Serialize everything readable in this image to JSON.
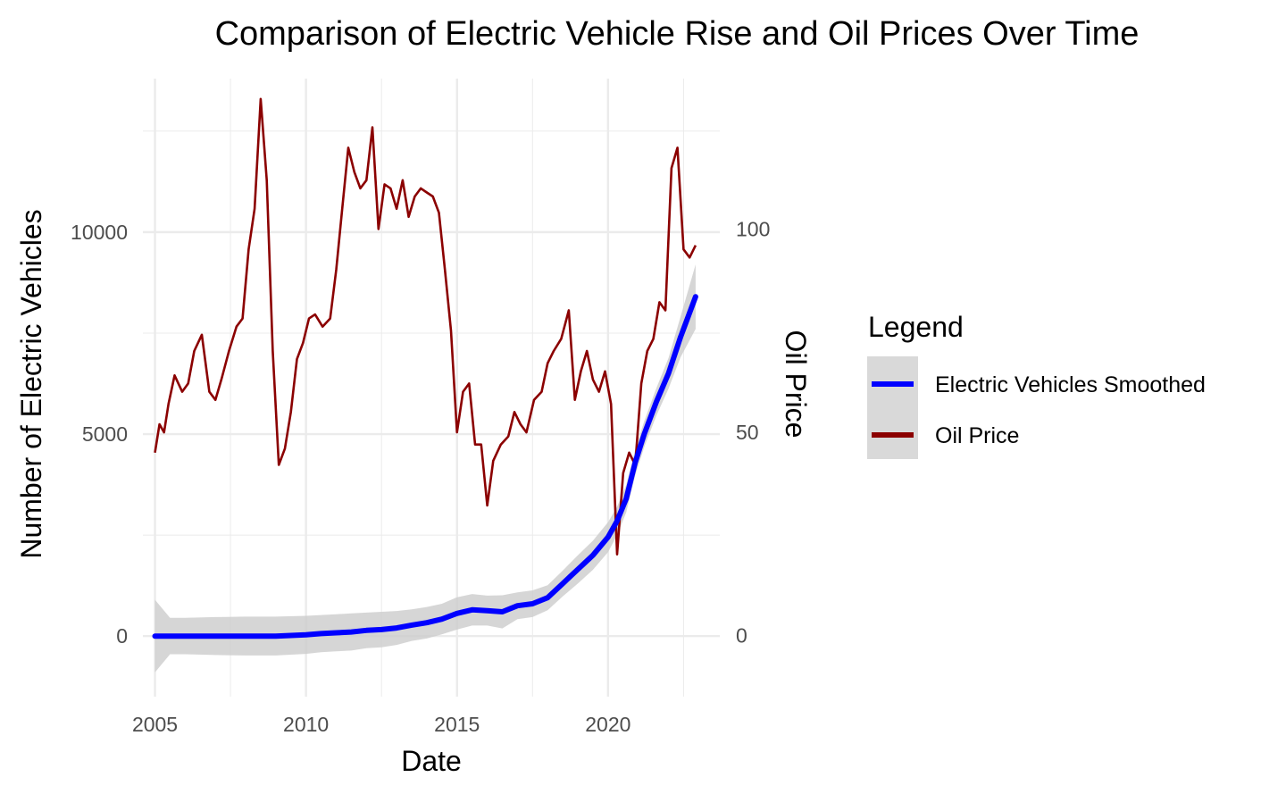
{
  "chart_data": {
    "type": "line",
    "title": "Comparison of Electric Vehicle Rise and Oil Prices Over Time",
    "xlabel": "Date",
    "ylabel": "Number of Electric Vehicles",
    "y2label": "Oil Price",
    "xlim": [
      2004.6,
      2023.7
    ],
    "ylim": [
      -1500,
      13800
    ],
    "y2lim": [
      -15,
      137
    ],
    "x_ticks": [
      "2005",
      "2010",
      "2015",
      "2020"
    ],
    "y_ticks": [
      "0",
      "5000",
      "10000"
    ],
    "y2_ticks": [
      "0",
      "50",
      "100"
    ],
    "grid": true,
    "legend": {
      "title": "Legend",
      "position": "right",
      "entries": [
        "Electric Vehicles Smoothed",
        "Oil Price"
      ]
    },
    "colors": {
      "ev": "#0000ff",
      "oil": "#8b0000",
      "band": "#cccccc",
      "grid": "#ebebeb"
    },
    "series": [
      {
        "name": "Electric Vehicles Smoothed",
        "axis": "left",
        "x": [
          2005.0,
          2005.5,
          2006,
          2007,
          2008,
          2009,
          2010,
          2010.5,
          2011,
          2011.5,
          2012,
          2012.5,
          2013,
          2013.5,
          2014,
          2014.5,
          2015,
          2015.5,
          2016,
          2016.5,
          2017,
          2017.5,
          2018,
          2018.5,
          2019,
          2019.5,
          2020,
          2020.3,
          2020.6,
          2020.9,
          2021.2,
          2021.6,
          2022,
          2022.4,
          2022.9
        ],
        "y": [
          0,
          0,
          0,
          0,
          0,
          0,
          30,
          60,
          80,
          100,
          140,
          160,
          200,
          270,
          330,
          420,
          560,
          650,
          630,
          600,
          750,
          800,
          950,
          1300,
          1650,
          2000,
          2450,
          2850,
          3400,
          4300,
          5000,
          5800,
          6500,
          7400,
          8400
        ],
        "band_upper": [
          900,
          450,
          450,
          470,
          480,
          480,
          500,
          520,
          540,
          560,
          580,
          600,
          620,
          660,
          720,
          800,
          960,
          1040,
          1000,
          1010,
          1080,
          1130,
          1260,
          1620,
          2000,
          2360,
          2820,
          3200,
          3740,
          4620,
          5320,
          6140,
          6880,
          7900,
          9200
        ],
        "band_lower": [
          -900,
          -450,
          -450,
          -470,
          -480,
          -480,
          -440,
          -400,
          -380,
          -360,
          -300,
          -280,
          -220,
          -120,
          -60,
          40,
          160,
          260,
          260,
          190,
          420,
          470,
          640,
          980,
          1300,
          1640,
          2080,
          2500,
          3060,
          3980,
          4680,
          5460,
          6120,
          6900,
          7600
        ]
      },
      {
        "name": "Oil Price",
        "axis": "right",
        "x": [
          2005.0,
          2005.15,
          2005.3,
          2005.45,
          2005.65,
          2005.9,
          2006.1,
          2006.3,
          2006.55,
          2006.8,
          2007.0,
          2007.2,
          2007.45,
          2007.7,
          2007.9,
          2008.1,
          2008.3,
          2008.5,
          2008.7,
          2008.9,
          2009.1,
          2009.3,
          2009.5,
          2009.7,
          2009.9,
          2010.1,
          2010.3,
          2010.55,
          2010.8,
          2011.0,
          2011.2,
          2011.4,
          2011.6,
          2011.8,
          2012.0,
          2012.2,
          2012.4,
          2012.6,
          2012.8,
          2013.0,
          2013.2,
          2013.4,
          2013.6,
          2013.8,
          2014.0,
          2014.2,
          2014.4,
          2014.6,
          2014.8,
          2015.0,
          2015.2,
          2015.4,
          2015.6,
          2015.8,
          2016.0,
          2016.2,
          2016.45,
          2016.7,
          2016.9,
          2017.1,
          2017.3,
          2017.55,
          2017.8,
          2018.0,
          2018.2,
          2018.45,
          2018.7,
          2018.9,
          2019.1,
          2019.3,
          2019.5,
          2019.7,
          2019.9,
          2020.1,
          2020.3,
          2020.5,
          2020.7,
          2020.9,
          2021.1,
          2021.3,
          2021.5,
          2021.7,
          2021.9,
          2022.1,
          2022.3,
          2022.5,
          2022.7,
          2022.9
        ],
        "y": [
          45,
          52,
          50,
          57,
          64,
          60,
          62,
          70,
          74,
          60,
          58,
          63,
          70,
          76,
          78,
          95,
          105,
          132,
          112,
          70,
          42,
          46,
          55,
          68,
          72,
          78,
          79,
          76,
          78,
          90,
          105,
          120,
          114,
          110,
          112,
          125,
          100,
          111,
          110,
          105,
          112,
          103,
          108,
          110,
          109,
          108,
          104,
          90,
          75,
          50,
          60,
          62,
          47,
          47,
          32,
          43,
          47,
          49,
          55,
          52,
          50,
          58,
          60,
          67,
          70,
          73,
          80,
          58,
          65,
          70,
          63,
          60,
          65,
          57,
          20,
          40,
          45,
          42,
          62,
          70,
          73,
          82,
          80,
          115,
          120,
          95,
          93,
          96
        ]
      }
    ]
  }
}
